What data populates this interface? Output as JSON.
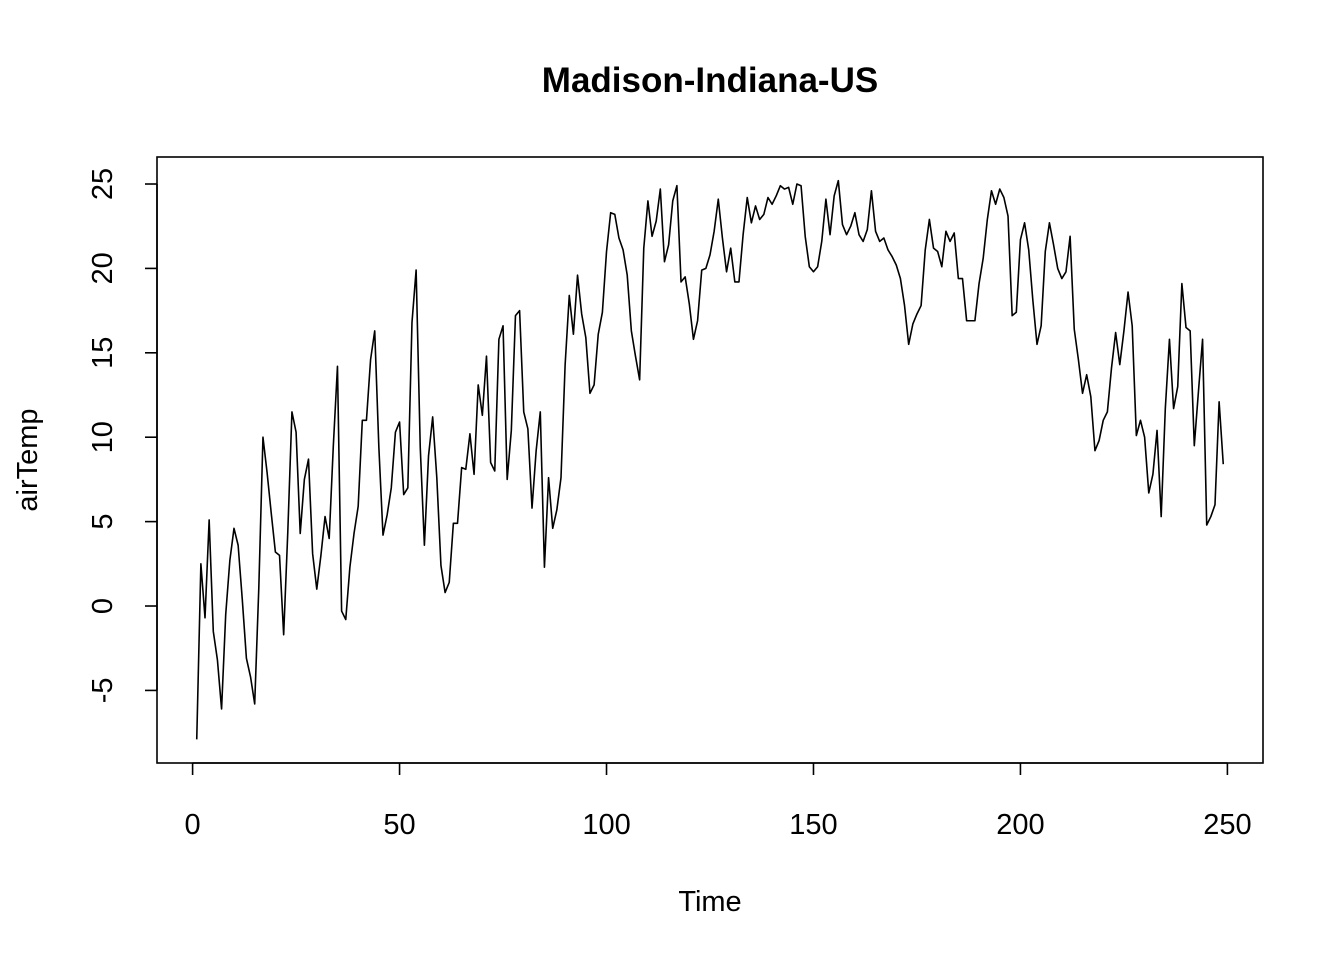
{
  "chart_data": {
    "type": "line",
    "title": "Madison-Indiana-US",
    "xlabel": "Time",
    "ylabel": "airTemp",
    "xlim": [
      -8.6,
      258.6
    ],
    "ylim": [
      -9.3,
      26.6
    ],
    "x_ticks": [
      0,
      50,
      100,
      150,
      200,
      250
    ],
    "x_tick_labels": [
      "0",
      "50",
      "100",
      "150",
      "200",
      "250"
    ],
    "y_ticks": [
      -5,
      0,
      5,
      10,
      15,
      20,
      25
    ],
    "y_tick_labels": [
      "-5",
      "0",
      "5",
      "10",
      "15",
      "20",
      "25"
    ],
    "grid": false,
    "legend": "none",
    "line_color": "#000000",
    "x_start": 1,
    "series": [
      {
        "values": [
          -7.9,
          2.5,
          -0.7,
          5.1,
          -1.5,
          -3.2,
          -6.1,
          -0.5,
          2.7,
          4.6,
          3.6,
          0.4,
          -3.1,
          -4.2,
          -5.8,
          1.1,
          10.0,
          7.9,
          5.5,
          3.2,
          3.0,
          -1.7,
          4.4,
          11.5,
          10.3,
          4.3,
          7.5,
          8.7,
          3.1,
          1.0,
          3.0,
          5.3,
          4.0,
          9.5,
          14.2,
          -0.3,
          -0.8,
          2.3,
          4.3,
          5.9,
          11.0,
          11.0,
          14.6,
          16.3,
          9.4,
          4.2,
          5.4,
          7.0,
          10.3,
          10.9,
          6.6,
          7.0,
          16.8,
          19.9,
          9.4,
          3.6,
          8.9,
          11.2,
          7.6,
          2.4,
          0.8,
          1.4,
          4.9,
          4.9,
          8.2,
          8.1,
          10.2,
          7.8,
          13.1,
          11.3,
          14.8,
          8.5,
          8.0,
          15.8,
          16.6,
          7.5,
          10.4,
          17.2,
          17.5,
          11.5,
          10.5,
          5.8,
          9.2,
          11.5,
          2.3,
          7.6,
          4.6,
          5.7,
          7.6,
          14.3,
          18.4,
          16.1,
          19.6,
          17.3,
          15.9,
          12.6,
          13.1,
          16.1,
          17.4,
          21.0,
          23.3,
          23.2,
          21.8,
          21.1,
          19.6,
          16.3,
          14.8,
          13.4,
          21.2,
          24.0,
          21.9,
          22.8,
          24.7,
          20.4,
          21.4,
          24.0,
          24.9,
          19.2,
          19.5,
          17.9,
          15.8,
          16.9,
          19.9,
          20.0,
          20.8,
          22.2,
          24.1,
          21.8,
          19.8,
          21.2,
          19.2,
          19.2,
          22.0,
          24.2,
          22.7,
          23.7,
          22.9,
          23.2,
          24.2,
          23.8,
          24.3,
          24.9,
          24.7,
          24.8,
          23.8,
          25.0,
          24.9,
          21.9,
          20.1,
          19.8,
          20.1,
          21.6,
          24.1,
          22.0,
          24.3,
          25.2,
          22.6,
          22.0,
          22.5,
          23.3,
          22.0,
          21.6,
          22.3,
          24.6,
          22.2,
          21.6,
          21.8,
          21.1,
          20.7,
          20.2,
          19.4,
          17.8,
          15.5,
          16.7,
          17.3,
          17.8,
          21.1,
          22.9,
          21.2,
          21.0,
          20.1,
          22.2,
          21.6,
          22.1,
          19.4,
          19.4,
          16.9,
          16.9,
          16.9,
          19.1,
          20.6,
          22.9,
          24.6,
          23.8,
          24.7,
          24.2,
          23.1,
          17.2,
          17.4,
          21.7,
          22.7,
          21.1,
          18.1,
          15.5,
          16.6,
          21.0,
          22.7,
          21.4,
          20.0,
          19.4,
          19.8,
          21.9,
          16.4,
          14.6,
          12.6,
          13.7,
          12.4,
          9.2,
          9.8,
          11.0,
          11.5,
          14.1,
          16.2,
          14.3,
          16.3,
          18.6,
          16.6,
          10.1,
          11.0,
          10.0,
          6.7,
          7.8,
          10.4,
          5.3,
          11.7,
          15.8,
          11.7,
          13.0,
          19.1,
          16.5,
          16.3,
          9.5,
          12.7,
          15.8,
          4.8,
          5.3,
          6.0,
          12.1,
          8.4
        ]
      }
    ]
  }
}
